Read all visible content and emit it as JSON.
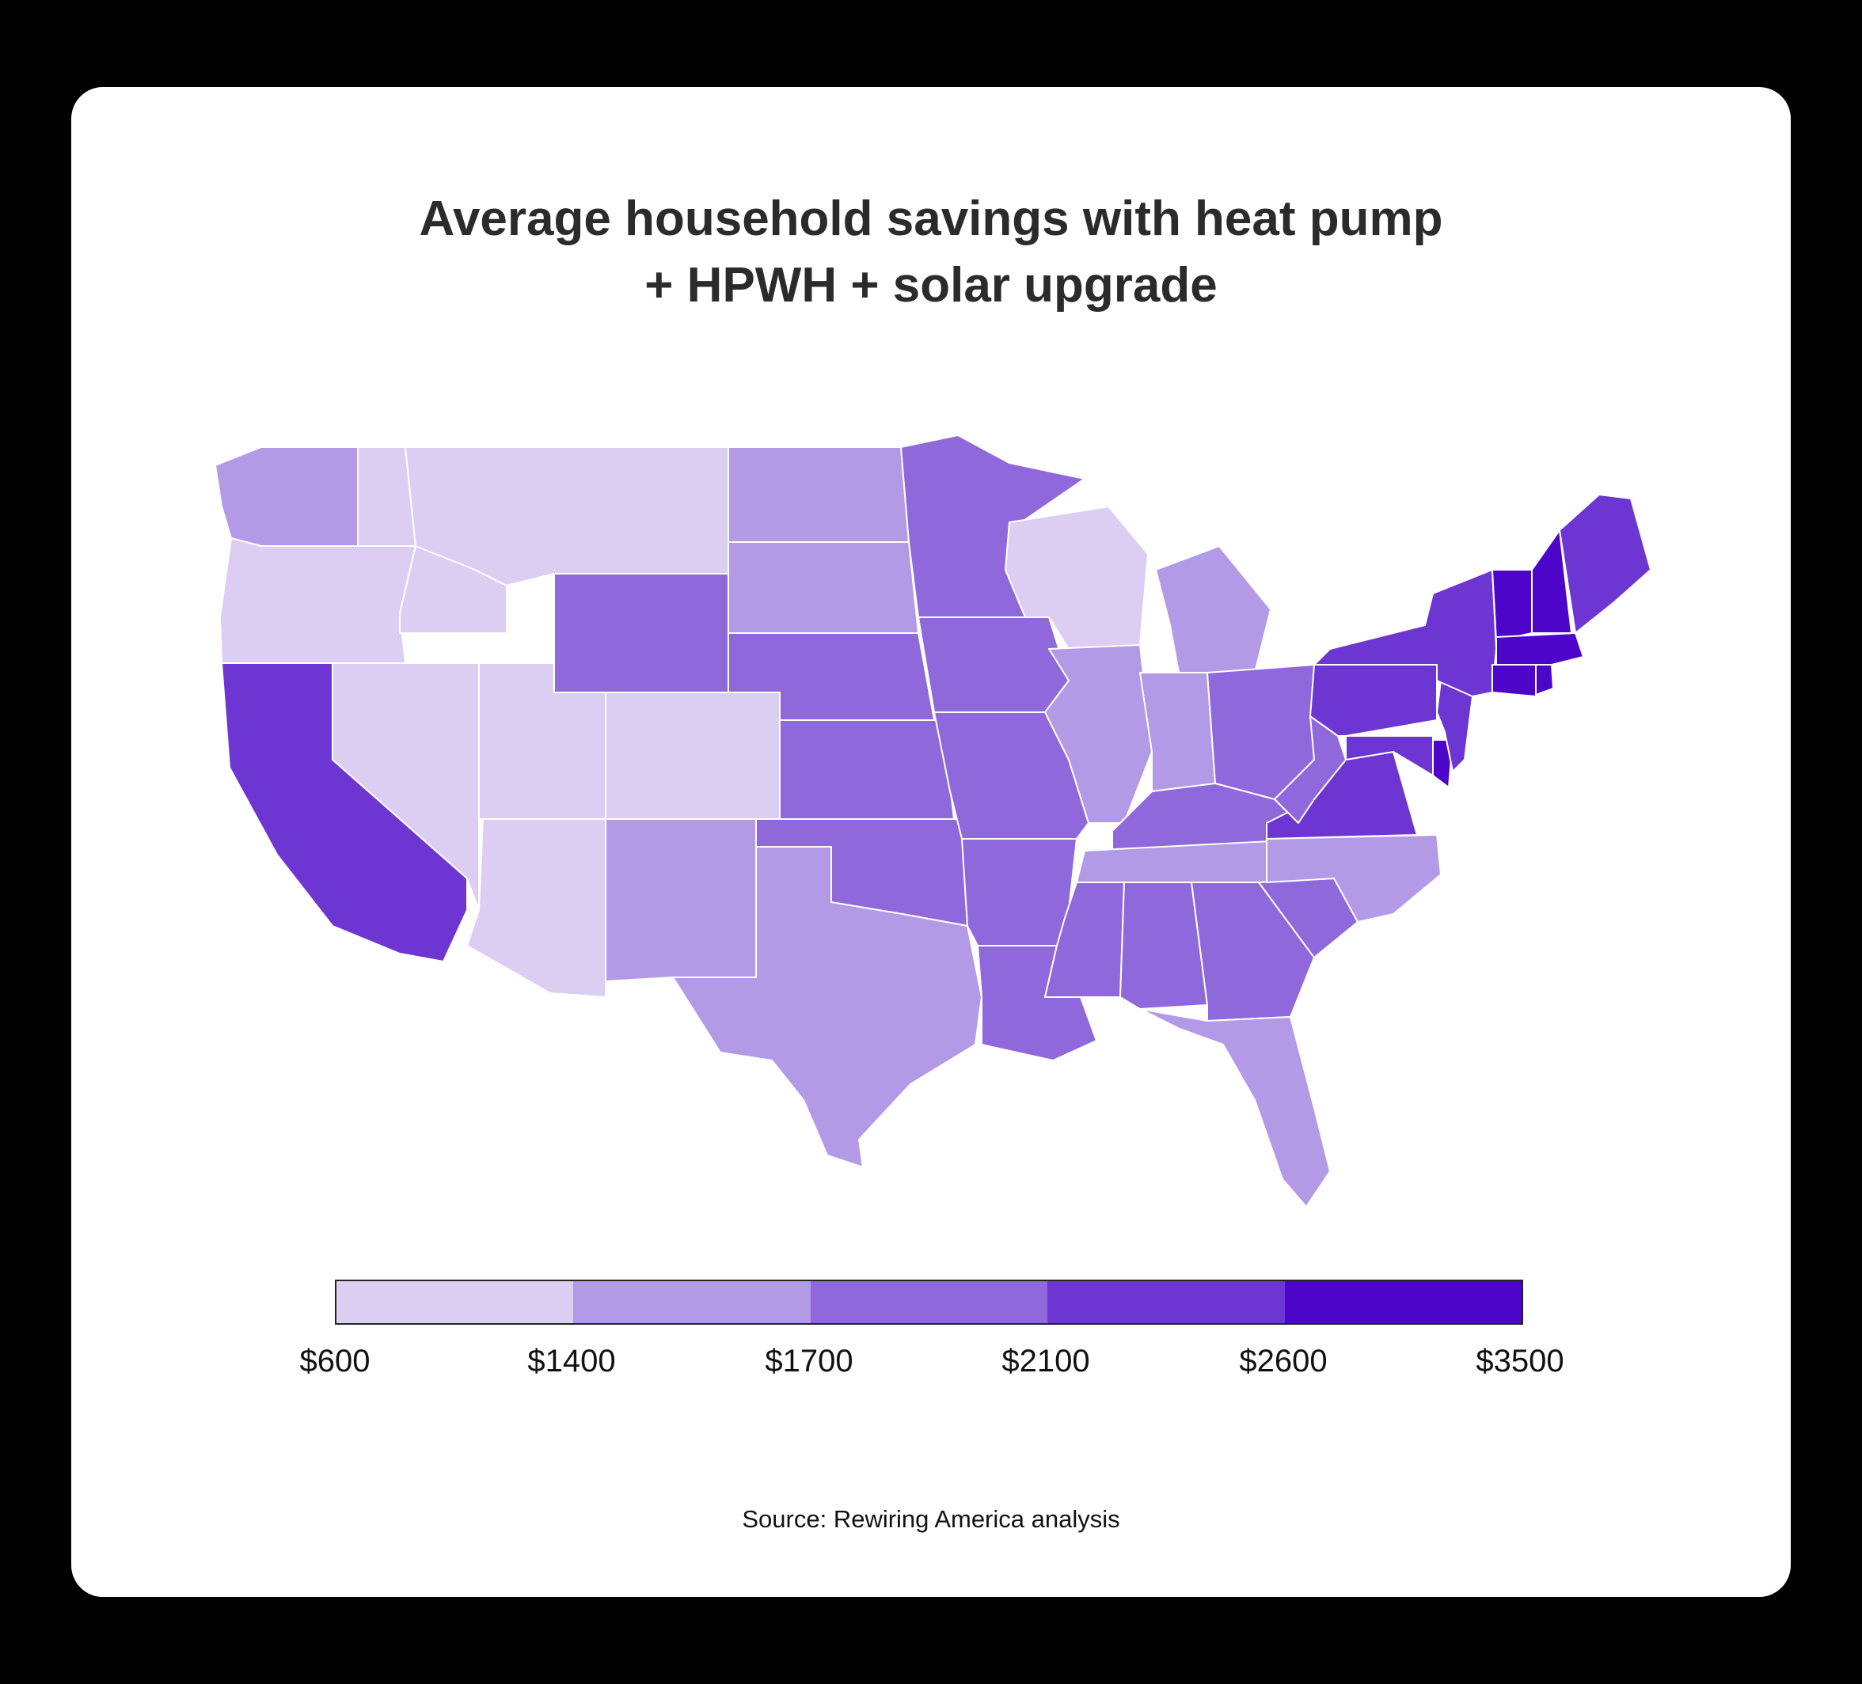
{
  "title": {
    "line1": "Average household savings with heat pump",
    "line2": "+ HPWH + solar upgrade"
  },
  "legend": {
    "colors": [
      "#dccdf3",
      "#b39ae6",
      "#8f68dc",
      "#6d36d2",
      "#4c05c9"
    ],
    "ticks": [
      "$600",
      "$1400",
      "$1700",
      "$2100",
      "$2600",
      "$3500"
    ]
  },
  "regions": {
    "washington": 1,
    "oregon": 0,
    "idaho": 0,
    "montana": 0,
    "wyoming": 2,
    "north_dakota": 1,
    "south_dakota": 1,
    "nebraska": 2,
    "kansas": 2,
    "oklahoma": 2,
    "texas": 1,
    "new_mexico": 1,
    "arizona": 0,
    "utah": 0,
    "colorado": 0,
    "nevada": 0,
    "california": 3,
    "minnesota": 2,
    "iowa": 2,
    "missouri": 2,
    "arkansas": 2,
    "louisiana": 2,
    "wisconsin": 0,
    "illinois": 1,
    "michigan": 1,
    "indiana": 1,
    "ohio": 2,
    "kentucky": 2,
    "tennessee": 1,
    "mississippi": 2,
    "alabama": 2,
    "georgia": 2,
    "florida": 1,
    "south_carolina": 2,
    "north_carolina": 1,
    "virginia": 3,
    "west_virginia": 2,
    "maryland": 3,
    "delaware": 4,
    "new_jersey": 3,
    "pennsylvania": 3,
    "new_york": 3,
    "vermont": 4,
    "new_hampshire": 4,
    "maine": 3,
    "massachusetts": 4,
    "connecticut": 4,
    "rhode_island": 4
  },
  "source": "Source: Rewiring America analysis"
}
